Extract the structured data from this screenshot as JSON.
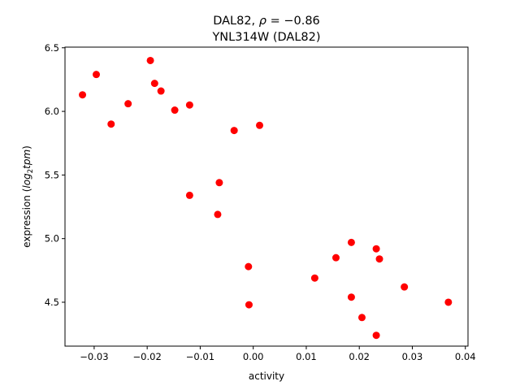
{
  "chart_data": {
    "type": "scatter",
    "title_line1_prefix": "DAL82, ",
    "title_line1_rho": "ρ",
    "title_line1_suffix": " = −0.86",
    "title_line2": "YNL314W (DAL82)",
    "xlabel": "activity",
    "ylabel_prefix": "expression (",
    "ylabel_log": "log",
    "ylabel_sub": "2",
    "ylabel_tpm": "tpm",
    "ylabel_suffix": ")",
    "xlim": [
      -0.0355,
      0.0405
    ],
    "ylim": [
      4.155,
      6.505
    ],
    "x_ticks": [
      -0.03,
      -0.02,
      -0.01,
      0.0,
      0.01,
      0.02,
      0.03,
      0.04
    ],
    "x_tick_labels": [
      "−0.03",
      "−0.02",
      "−0.01",
      "0.00",
      "0.01",
      "0.02",
      "0.03",
      "0.04"
    ],
    "y_ticks": [
      4.5,
      5.0,
      5.5,
      6.0,
      6.5
    ],
    "y_tick_labels": [
      "4.5",
      "5.0",
      "5.5",
      "6.0",
      "6.5"
    ],
    "point_color": "#ff0000",
    "points": [
      {
        "x": -0.0322,
        "y": 6.13
      },
      {
        "x": -0.0296,
        "y": 6.29
      },
      {
        "x": -0.0268,
        "y": 5.9
      },
      {
        "x": -0.0236,
        "y": 6.06
      },
      {
        "x": -0.0194,
        "y": 6.4
      },
      {
        "x": -0.0186,
        "y": 6.22
      },
      {
        "x": -0.0174,
        "y": 6.16
      },
      {
        "x": -0.0148,
        "y": 6.01
      },
      {
        "x": -0.012,
        "y": 6.05
      },
      {
        "x": -0.012,
        "y": 5.34
      },
      {
        "x": -0.0067,
        "y": 5.19
      },
      {
        "x": -0.0064,
        "y": 5.44
      },
      {
        "x": -0.0036,
        "y": 5.85
      },
      {
        "x": 0.0012,
        "y": 5.89
      },
      {
        "x": -0.0009,
        "y": 4.78
      },
      {
        "x": -0.0008,
        "y": 4.48
      },
      {
        "x": 0.0116,
        "y": 4.69
      },
      {
        "x": 0.0156,
        "y": 4.85
      },
      {
        "x": 0.0185,
        "y": 4.97
      },
      {
        "x": 0.0185,
        "y": 4.54
      },
      {
        "x": 0.0205,
        "y": 4.38
      },
      {
        "x": 0.0232,
        "y": 4.92
      },
      {
        "x": 0.0238,
        "y": 4.84
      },
      {
        "x": 0.0232,
        "y": 4.24
      },
      {
        "x": 0.0285,
        "y": 4.62
      },
      {
        "x": 0.0368,
        "y": 4.5
      }
    ]
  }
}
